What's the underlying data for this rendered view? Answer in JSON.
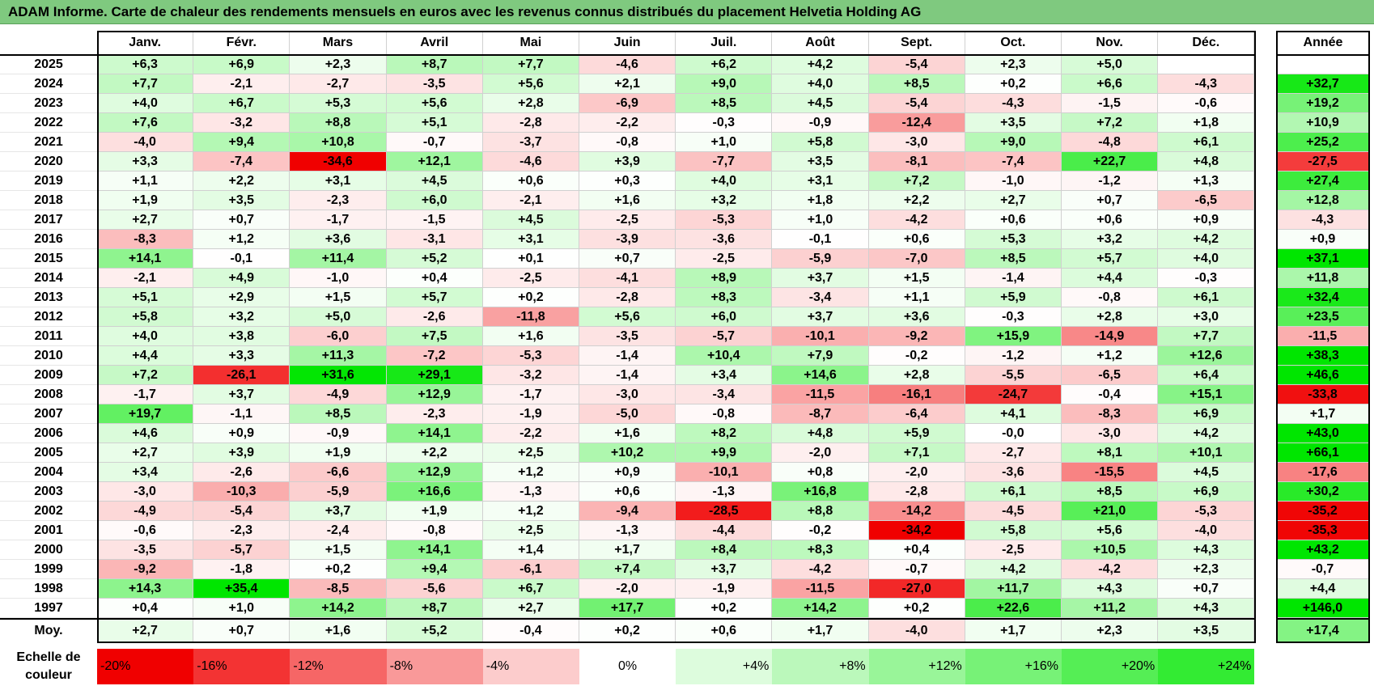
{
  "title": "ADAM Informe. Carte de chaleur des rendements mensuels en euros avec les revenus connus distribués du placement Helvetia Holding AG",
  "chart_data": {
    "type": "heatmap",
    "title": "ADAM Informe. Carte de chaleur des rendements mensuels en euros avec les revenus connus distribués du placement Helvetia Holding AG",
    "months": [
      "Janv.",
      "Févr.",
      "Mars",
      "Avril",
      "Mai",
      "Juin",
      "Juil.",
      "Août",
      "Sept.",
      "Oct.",
      "Nov.",
      "Déc."
    ],
    "annual_label": "Année",
    "rows": [
      {
        "year": "2025",
        "values": [
          "+6,3",
          "+6,9",
          "+2,3",
          "+8,7",
          "+7,7",
          "-4,6",
          "+6,2",
          "+4,2",
          "-5,4",
          "+2,3",
          "+5,0",
          ""
        ],
        "annual": ""
      },
      {
        "year": "2024",
        "values": [
          "+7,7",
          "-2,1",
          "-2,7",
          "-3,5",
          "+5,6",
          "+2,1",
          "+9,0",
          "+4,0",
          "+8,5",
          "+0,2",
          "+6,6",
          "-4,3"
        ],
        "annual": "+32,7"
      },
      {
        "year": "2023",
        "values": [
          "+4,0",
          "+6,7",
          "+5,3",
          "+5,6",
          "+2,8",
          "-6,9",
          "+8,5",
          "+4,5",
          "-5,4",
          "-4,3",
          "-1,5",
          "-0,6"
        ],
        "annual": "+19,2"
      },
      {
        "year": "2022",
        "values": [
          "+7,6",
          "-3,2",
          "+8,8",
          "+5,1",
          "-2,8",
          "-2,2",
          "-0,3",
          "-0,9",
          "-12,4",
          "+3,5",
          "+7,2",
          "+1,8"
        ],
        "annual": "+10,9"
      },
      {
        "year": "2021",
        "values": [
          "-4,0",
          "+9,4",
          "+10,8",
          "-0,7",
          "-3,7",
          "-0,8",
          "+1,0",
          "+5,8",
          "-3,0",
          "+9,0",
          "-4,8",
          "+6,1"
        ],
        "annual": "+25,2"
      },
      {
        "year": "2020",
        "values": [
          "+3,3",
          "-7,4",
          "-34,6",
          "+12,1",
          "-4,6",
          "+3,9",
          "-7,7",
          "+3,5",
          "-8,1",
          "-7,4",
          "+22,7",
          "+4,8"
        ],
        "annual": "-27,5"
      },
      {
        "year": "2019",
        "values": [
          "+1,1",
          "+2,2",
          "+3,1",
          "+4,5",
          "+0,6",
          "+0,3",
          "+4,0",
          "+3,1",
          "+7,2",
          "-1,0",
          "-1,2",
          "+1,3"
        ],
        "annual": "+27,4"
      },
      {
        "year": "2018",
        "values": [
          "+1,9",
          "+3,5",
          "-2,3",
          "+6,0",
          "-2,1",
          "+1,6",
          "+3,2",
          "+1,8",
          "+2,2",
          "+2,7",
          "+0,7",
          "-6,5"
        ],
        "annual": "+12,8"
      },
      {
        "year": "2017",
        "values": [
          "+2,7",
          "+0,7",
          "-1,7",
          "-1,5",
          "+4,5",
          "-2,5",
          "-5,3",
          "+1,0",
          "-4,2",
          "+0,6",
          "+0,6",
          "+0,9"
        ],
        "annual": "-4,3"
      },
      {
        "year": "2016",
        "values": [
          "-8,3",
          "+1,2",
          "+3,6",
          "-3,1",
          "+3,1",
          "-3,9",
          "-3,6",
          "-0,1",
          "+0,6",
          "+5,3",
          "+3,2",
          "+4,2"
        ],
        "annual": "+0,9"
      },
      {
        "year": "2015",
        "values": [
          "+14,1",
          "-0,1",
          "+11,4",
          "+5,2",
          "+0,1",
          "+0,7",
          "-2,5",
          "-5,9",
          "-7,0",
          "+8,5",
          "+5,7",
          "+4,0"
        ],
        "annual": "+37,1"
      },
      {
        "year": "2014",
        "values": [
          "-2,1",
          "+4,9",
          "-1,0",
          "+0,4",
          "-2,5",
          "-4,1",
          "+8,9",
          "+3,7",
          "+1,5",
          "-1,4",
          "+4,4",
          "-0,3"
        ],
        "annual": "+11,8"
      },
      {
        "year": "2013",
        "values": [
          "+5,1",
          "+2,9",
          "+1,5",
          "+5,7",
          "+0,2",
          "-2,8",
          "+8,3",
          "-3,4",
          "+1,1",
          "+5,9",
          "-0,8",
          "+6,1"
        ],
        "annual": "+32,4"
      },
      {
        "year": "2012",
        "values": [
          "+5,8",
          "+3,2",
          "+5,0",
          "-2,6",
          "-11,8",
          "+5,6",
          "+6,0",
          "+3,7",
          "+3,6",
          "-0,3",
          "+2,8",
          "+3,0"
        ],
        "annual": "+23,5"
      },
      {
        "year": "2011",
        "values": [
          "+4,0",
          "+3,8",
          "-6,0",
          "+7,5",
          "+1,6",
          "-3,5",
          "-5,7",
          "-10,1",
          "-9,2",
          "+15,9",
          "-14,9",
          "+7,7"
        ],
        "annual": "-11,5"
      },
      {
        "year": "2010",
        "values": [
          "+4,4",
          "+3,3",
          "+11,3",
          "-7,2",
          "-5,3",
          "-1,4",
          "+10,4",
          "+7,9",
          "-0,2",
          "-1,2",
          "+1,2",
          "+12,6"
        ],
        "annual": "+38,3"
      },
      {
        "year": "2009",
        "values": [
          "+7,2",
          "-26,1",
          "+31,6",
          "+29,1",
          "-3,2",
          "-1,4",
          "+3,4",
          "+14,6",
          "+2,8",
          "-5,5",
          "-6,5",
          "+6,4"
        ],
        "annual": "+46,6"
      },
      {
        "year": "2008",
        "values": [
          "-1,7",
          "+3,7",
          "-4,9",
          "+12,9",
          "-1,7",
          "-3,0",
          "-3,4",
          "-11,5",
          "-16,1",
          "-24,7",
          "-0,4",
          "+15,1"
        ],
        "annual": "-33,8"
      },
      {
        "year": "2007",
        "values": [
          "+19,7",
          "-1,1",
          "+8,5",
          "-2,3",
          "-1,9",
          "-5,0",
          "-0,8",
          "-8,7",
          "-6,4",
          "+4,1",
          "-8,3",
          "+6,9"
        ],
        "annual": "+1,7"
      },
      {
        "year": "2006",
        "values": [
          "+4,6",
          "+0,9",
          "-0,9",
          "+14,1",
          "-2,2",
          "+1,6",
          "+8,2",
          "+4,8",
          "+5,9",
          "-0,0",
          "-3,0",
          "+4,2"
        ],
        "annual": "+43,0"
      },
      {
        "year": "2005",
        "values": [
          "+2,7",
          "+3,9",
          "+1,9",
          "+2,2",
          "+2,5",
          "+10,2",
          "+9,9",
          "-2,0",
          "+7,1",
          "-2,7",
          "+8,1",
          "+10,1"
        ],
        "annual": "+66,1"
      },
      {
        "year": "2004",
        "values": [
          "+3,4",
          "-2,6",
          "-6,6",
          "+12,9",
          "+1,2",
          "+0,9",
          "-10,1",
          "+0,8",
          "-2,0",
          "-3,6",
          "-15,5",
          "+4,5"
        ],
        "annual": "-17,6"
      },
      {
        "year": "2003",
        "values": [
          "-3,0",
          "-10,3",
          "-5,9",
          "+16,6",
          "-1,3",
          "+0,6",
          "-1,3",
          "+16,8",
          "-2,8",
          "+6,1",
          "+8,5",
          "+6,9"
        ],
        "annual": "+30,2"
      },
      {
        "year": "2002",
        "values": [
          "-4,9",
          "-5,4",
          "+3,7",
          "+1,9",
          "+1,2",
          "-9,4",
          "-28,5",
          "+8,8",
          "-14,2",
          "-4,5",
          "+21,0",
          "-5,3"
        ],
        "annual": "-35,2"
      },
      {
        "year": "2001",
        "values": [
          "-0,6",
          "-2,3",
          "-2,4",
          "-0,8",
          "+2,5",
          "-1,3",
          "-4,4",
          "-0,2",
          "-34,2",
          "+5,8",
          "+5,6",
          "-4,0"
        ],
        "annual": "-35,3"
      },
      {
        "year": "2000",
        "values": [
          "-3,5",
          "-5,7",
          "+1,5",
          "+14,1",
          "+1,4",
          "+1,7",
          "+8,4",
          "+8,3",
          "+0,4",
          "-2,5",
          "+10,5",
          "+4,3"
        ],
        "annual": "+43,2"
      },
      {
        "year": "1999",
        "values": [
          "-9,2",
          "-1,8",
          "+0,2",
          "+9,4",
          "-6,1",
          "+7,4",
          "+3,7",
          "-4,2",
          "-0,7",
          "+4,2",
          "-4,2",
          "+2,3"
        ],
        "annual": "-0,7"
      },
      {
        "year": "1998",
        "values": [
          "+14,3",
          "+35,4",
          "-8,5",
          "-5,6",
          "+6,7",
          "-2,0",
          "-1,9",
          "-11,5",
          "-27,0",
          "+11,7",
          "+4,3",
          "+0,7"
        ],
        "annual": "+4,4"
      },
      {
        "year": "1997",
        "values": [
          "+0,4",
          "+1,0",
          "+14,2",
          "+8,7",
          "+2,7",
          "+17,7",
          "+0,2",
          "+14,2",
          "+0,2",
          "+22,6",
          "+11,2",
          "+4,3"
        ],
        "annual": "+146,0"
      }
    ],
    "average": {
      "label": "Moy.",
      "values": [
        "+2,7",
        "+0,7",
        "+1,6",
        "+5,2",
        "-0,4",
        "+0,2",
        "+0,6",
        "+1,7",
        "-4,0",
        "+1,7",
        "+2,3",
        "+3,5"
      ],
      "annual": "+17,4"
    },
    "scale": {
      "label_line1": "Echelle de",
      "label_line2": "couleur",
      "steps": [
        {
          "label": "-20%",
          "value": -20
        },
        {
          "label": "-16%",
          "value": -16
        },
        {
          "label": "-12%",
          "value": -12
        },
        {
          "label": "-8%",
          "value": -8
        },
        {
          "label": "-4%",
          "value": -4
        },
        {
          "label": "0%",
          "value": 0
        },
        {
          "label": "+4%",
          "value": 4
        },
        {
          "label": "+8%",
          "value": 8
        },
        {
          "label": "+12%",
          "value": 12
        },
        {
          "label": "+16%",
          "value": 16
        },
        {
          "label": "+20%",
          "value": 20
        },
        {
          "label": "+24%",
          "value": 24
        }
      ]
    }
  }
}
